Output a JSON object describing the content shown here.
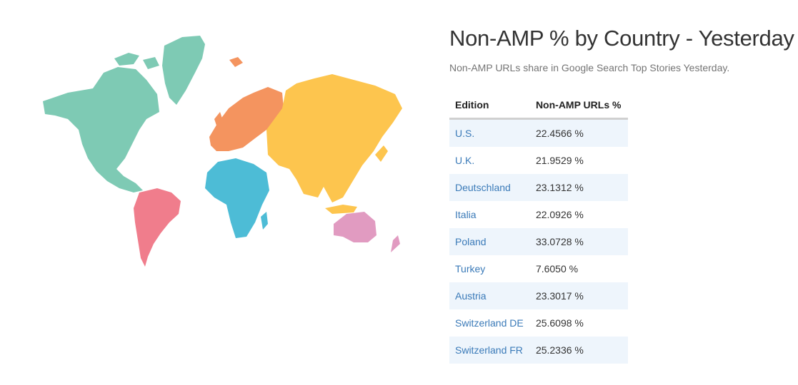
{
  "title": "Non-AMP % by Country - Yesterday",
  "subtitle": "Non-AMP URLs share in Google Search Top Stories Yesterday.",
  "table": {
    "headers": [
      "Edition",
      "Non-AMP URLs %"
    ],
    "rows": [
      {
        "edition": "U.S.",
        "value": "22.4566 %"
      },
      {
        "edition": "U.K.",
        "value": "21.9529 %"
      },
      {
        "edition": "Deutschland",
        "value": "23.1312 %"
      },
      {
        "edition": "Italia",
        "value": "22.0926 %"
      },
      {
        "edition": "Poland",
        "value": "33.0728 %"
      },
      {
        "edition": "Turkey",
        "value": "7.6050 %"
      },
      {
        "edition": "Austria",
        "value": "23.3017 %"
      },
      {
        "edition": "Switzerland DE",
        "value": "25.6098 %"
      },
      {
        "edition": "Switzerland FR",
        "value": "25.2336 %"
      }
    ]
  },
  "map": {
    "continents": [
      {
        "name": "north-america",
        "color": "#7ecab4"
      },
      {
        "name": "greenland",
        "color": "#7ecab4"
      },
      {
        "name": "south-america",
        "color": "#f07d8c"
      },
      {
        "name": "europe",
        "color": "#f4945f"
      },
      {
        "name": "africa",
        "color": "#4dbcd6"
      },
      {
        "name": "asia",
        "color": "#fdc54e"
      },
      {
        "name": "oceania",
        "color": "#e19bc1"
      }
    ]
  }
}
